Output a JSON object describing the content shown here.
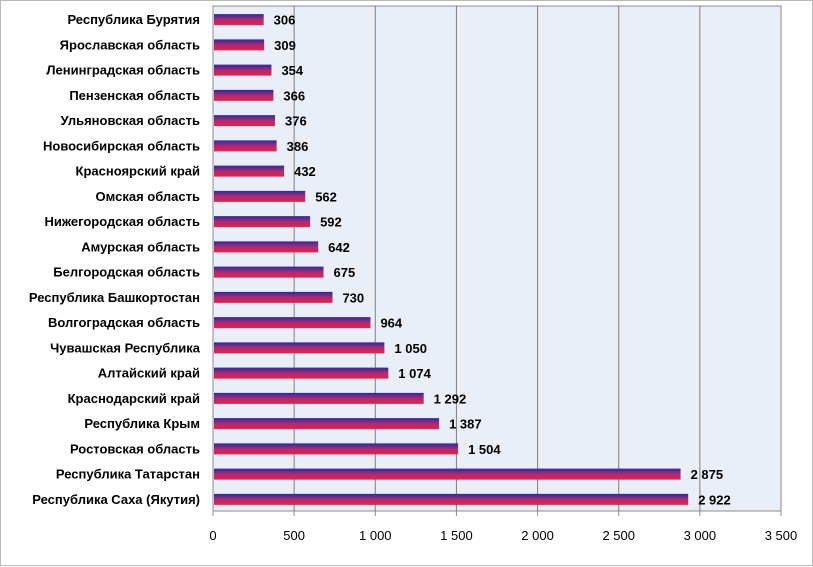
{
  "chart_data": {
    "type": "bar",
    "orientation": "horizontal",
    "categories": [
      "Республика Бурятия",
      "Ярославская область",
      "Ленинградская область",
      "Пензенская область",
      "Ульяновская область",
      "Новосибирская область",
      "Красноярский край",
      "Омская область",
      "Нижегородская область",
      "Амурская область",
      "Белгородская область",
      "Республика Башкортостан",
      "Волгоградская область",
      "Чувашская Республика",
      "Алтайский край",
      "Краснодарский край",
      "Республика Крым",
      "Ростовская область",
      "Республика Татарстан",
      "Республика Саха (Якутия)"
    ],
    "values": [
      306,
      309,
      354,
      366,
      376,
      386,
      432,
      562,
      592,
      642,
      675,
      730,
      964,
      1050,
      1074,
      1292,
      1387,
      1504,
      2875,
      2922
    ],
    "value_labels": [
      "306",
      "309",
      "354",
      "366",
      "376",
      "386",
      "432",
      "562",
      "592",
      "642",
      "675",
      "730",
      "964",
      "1 050",
      "1 074",
      "1 292",
      "1 387",
      "1 504",
      "2 875",
      "2 922"
    ],
    "x_ticks": [
      "0",
      "500",
      "1 000",
      "1 500",
      "2 000",
      "2 500",
      "3 000",
      "3 500"
    ],
    "xlim": [
      0,
      3500
    ],
    "title": "",
    "xlabel": "",
    "ylabel": "",
    "grid": "vertical gridlines",
    "legend": "none",
    "colors": {
      "plot_background": "#e9eef7",
      "gridline": "#7f7f7f",
      "bar_top": "#2a2aa8",
      "bar_mid": "#b02a6e",
      "bar_bottom": "#e8204a"
    }
  }
}
